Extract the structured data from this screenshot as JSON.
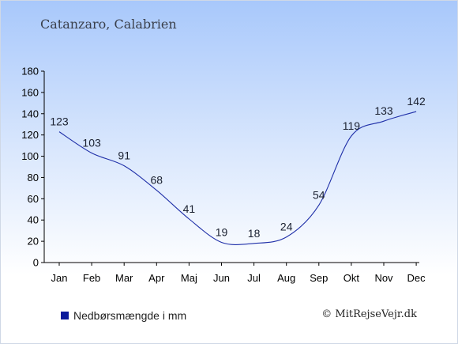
{
  "subtitle": "Catanzaro, Calabrien",
  "legend_label": "Nedbørsmængde i mm",
  "copyright": "© MitRejseVejr.dk",
  "colors": {
    "line": "#1f2fa8",
    "swatch": "#0a1a9c",
    "axis": "#000000",
    "label": "#1a2030"
  },
  "chart_data": {
    "type": "line",
    "categories": [
      "Jan",
      "Feb",
      "Mar",
      "Apr",
      "Maj",
      "Jun",
      "Jul",
      "Aug",
      "Sep",
      "Okt",
      "Nov",
      "Dec"
    ],
    "series": [
      {
        "name": "Nedbørsmængde i mm",
        "values": [
          123,
          103,
          91,
          68,
          41,
          19,
          18,
          24,
          54,
          119,
          133,
          142
        ]
      }
    ],
    "yticks": [
      0,
      20,
      40,
      60,
      80,
      100,
      120,
      140,
      160,
      180
    ],
    "ylim": [
      0,
      180
    ],
    "grid": false,
    "data_labels": true,
    "legend_position": "bottom-left"
  }
}
